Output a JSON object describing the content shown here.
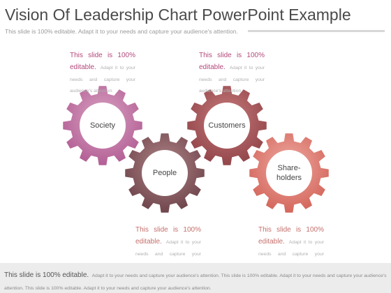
{
  "header": {
    "title": "Vision Of Leadership Chart PowerPoint Example",
    "subtitle": "This slide is 100% editable. Adapt it to your needs and capture your audience's attention."
  },
  "gears": [
    {
      "label": "Society",
      "color_outer": "#c483a8",
      "color_inner": "#b8649a"
    },
    {
      "label": "People",
      "color_outer": "#a17579",
      "color_inner": "#7a5055"
    },
    {
      "label": "Customers",
      "color_outer": "#b86a6c",
      "color_inner": "#9e4f52"
    },
    {
      "label": "Share-",
      "label2": "holders",
      "color_outer": "#e6978f",
      "color_inner": "#d56d63"
    }
  ],
  "notes": [
    {
      "head": "This slide is 100% editable.",
      "body": "Adapt it to your needs and capture your audience's attention."
    },
    {
      "head": "This slide is 100% editable.",
      "body": "Adapt it to your needs and capture your audience's attention."
    },
    {
      "head": "This slide is 100% editable.",
      "body": "Adapt it to your needs and capture your audience's attention."
    },
    {
      "head": "This slide is 100% editable.",
      "body": "Adapt it to your needs and capture your audience's attention."
    }
  ],
  "footer": {
    "lead": "This slide is 100% editable.",
    "rest": "Adapt it to your needs and capture your audience's attention. This slide is 100% editable. Adapt it to your needs and capture your audience's attention. This slide is 100% editable. Adapt it to your needs and capture your audience's attention."
  }
}
